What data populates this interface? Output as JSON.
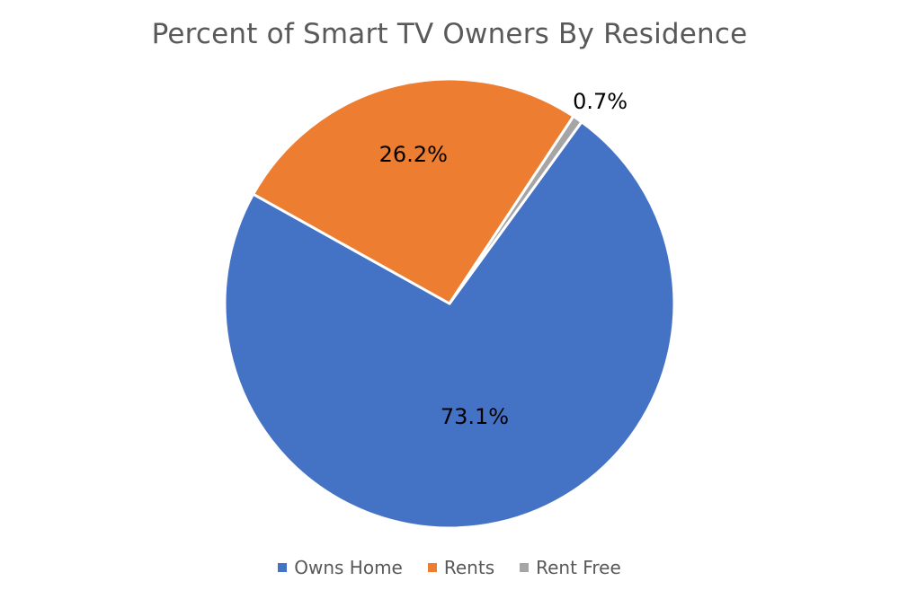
{
  "chart_data": {
    "type": "pie",
    "title": "Percent of Smart TV Owners By Residence",
    "categories": [
      "Owns Home",
      "Rents",
      "Rent Free"
    ],
    "values": [
      73.1,
      26.2,
      0.7
    ],
    "data_labels": [
      "73.1%",
      "26.2%",
      "0.7%"
    ],
    "colors": [
      "#4472C4",
      "#ED7D31",
      "#A5A5A5"
    ],
    "start_angle_deg": 36,
    "legend_position": "bottom"
  }
}
